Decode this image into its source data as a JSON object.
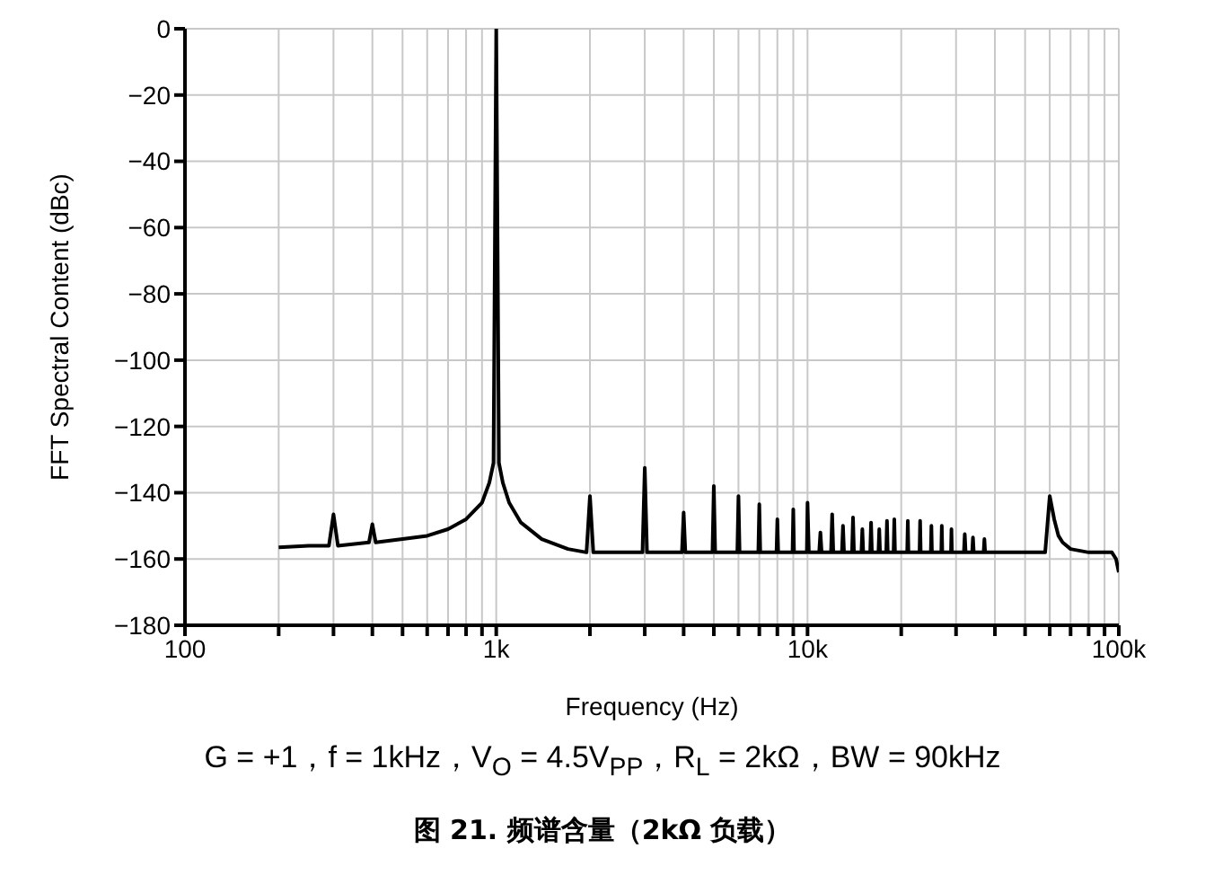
{
  "chart_data": {
    "type": "line",
    "title": "图 21. 频谱含量（2kΩ 负载）",
    "xlabel": "Frequency (Hz)",
    "ylabel": "FFT Spectral Content (dBc)",
    "annotations": [
      "G = +1，f = 1kHz，V$_{O}$ = 4.5V$_{PP}$，R$_{L}$ = 2kΩ，BW = 90kHz"
    ],
    "log": "x",
    "grid": true,
    "marker": "none",
    "line_style": "solid",
    "xlim": [
      100,
      100000
    ],
    "ylim": [
      -180,
      0
    ],
    "xticks": [
      {
        "value": 100,
        "label": "100"
      },
      {
        "value": 200,
        "label": null
      },
      {
        "value": 300,
        "label": null
      },
      {
        "value": 400,
        "label": null
      },
      {
        "value": 500,
        "label": null
      },
      {
        "value": 600,
        "label": null
      },
      {
        "value": 700,
        "label": null
      },
      {
        "value": 800,
        "label": null
      },
      {
        "value": 900,
        "label": null
      },
      {
        "value": 1000,
        "label": "1k"
      },
      {
        "value": 2000,
        "label": null
      },
      {
        "value": 3000,
        "label": null
      },
      {
        "value": 4000,
        "label": null
      },
      {
        "value": 5000,
        "label": null
      },
      {
        "value": 6000,
        "label": null
      },
      {
        "value": 7000,
        "label": null
      },
      {
        "value": 8000,
        "label": null
      },
      {
        "value": 9000,
        "label": null
      },
      {
        "value": 10000,
        "label": "10k"
      },
      {
        "value": 20000,
        "label": null
      },
      {
        "value": 30000,
        "label": null
      },
      {
        "value": 40000,
        "label": null
      },
      {
        "value": 50000,
        "label": null
      },
      {
        "value": 60000,
        "label": null
      },
      {
        "value": 70000,
        "label": null
      },
      {
        "value": 80000,
        "label": null
      },
      {
        "value": 90000,
        "label": null
      },
      {
        "value": 100000,
        "label": "100k"
      }
    ],
    "yticks": [
      0,
      {
        "value": -20,
        "label": "−20"
      },
      {
        "value": -40,
        "label": "−40"
      },
      {
        "value": -60,
        "label": "−60"
      },
      {
        "value": -80,
        "label": "−80"
      },
      {
        "value": -100,
        "label": "−100"
      },
      {
        "value": -120,
        "label": "−120"
      },
      {
        "value": -140,
        "label": "−140"
      },
      {
        "value": -160,
        "label": "−160"
      },
      {
        "value": -180,
        "label": "−180"
      }
    ],
    "series": [
      {
        "color": "#000000",
        "x": [
          200,
          250,
          290,
          300,
          310,
          390,
          400,
          410,
          500,
          600,
          700,
          800,
          900,
          950,
          980,
          1000,
          1020,
          1050,
          1100,
          1200,
          1400,
          1700,
          1950,
          2000,
          2050,
          2950,
          3000,
          3050,
          3950,
          4000,
          4050,
          4950,
          5000,
          5050,
          5950,
          6000,
          6050,
          6950,
          7000,
          7050,
          7950,
          8000,
          8050,
          8950,
          9000,
          9050,
          9950,
          10000,
          10100,
          10900,
          11000,
          11100,
          11900,
          12000,
          12100,
          12900,
          13000,
          13100,
          13900,
          14000,
          14100,
          14900,
          15000,
          15100,
          15900,
          16000,
          16100,
          16900,
          17000,
          17100,
          17900,
          18000,
          18100,
          18900,
          19000,
          19100,
          20900,
          21000,
          21100,
          22900,
          23000,
          23100,
          24900,
          25000,
          25100,
          26900,
          27000,
          27100,
          28900,
          29000,
          29100,
          31800,
          32000,
          32200,
          33800,
          34000,
          34200,
          36800,
          37000,
          37200,
          45000,
          58000,
          60000,
          62000,
          64000,
          66000,
          70000,
          80000,
          90000,
          95000,
          98000,
          100000
        ],
        "values": [
          -156.5,
          -156,
          -156,
          -146.5,
          -156,
          -155,
          -149.5,
          -155,
          -154,
          -153,
          -151,
          -148,
          -143,
          -137,
          -131,
          0,
          -131,
          -137,
          -143,
          -149,
          -154,
          -157,
          -158,
          -141,
          -158,
          -158,
          -132.5,
          -158,
          -158,
          -146,
          -158,
          -158,
          -138,
          -158,
          -158,
          -141,
          -158,
          -158,
          -143.5,
          -158,
          -158,
          -148,
          -158,
          -158,
          -145,
          -158,
          -158,
          -143,
          -158,
          -158,
          -152,
          -158,
          -158,
          -146.5,
          -158,
          -158,
          -150,
          -158,
          -158,
          -147.5,
          -158,
          -158,
          -151,
          -158,
          -158,
          -149,
          -158,
          -158,
          -151,
          -158,
          -158,
          -148.5,
          -158,
          -158,
          -148,
          -158,
          -158,
          -148.5,
          -158,
          -158,
          -148.5,
          -158,
          -158,
          -150,
          -158,
          -158,
          -150,
          -158,
          -158,
          -151,
          -158,
          -158,
          -152.5,
          -158,
          -158,
          -153.5,
          -158,
          -158,
          -154,
          -158,
          -158,
          -158,
          -141,
          -148,
          -153,
          -155,
          -157,
          -158,
          -158,
          -158,
          -160,
          -164
        ]
      }
    ]
  }
}
